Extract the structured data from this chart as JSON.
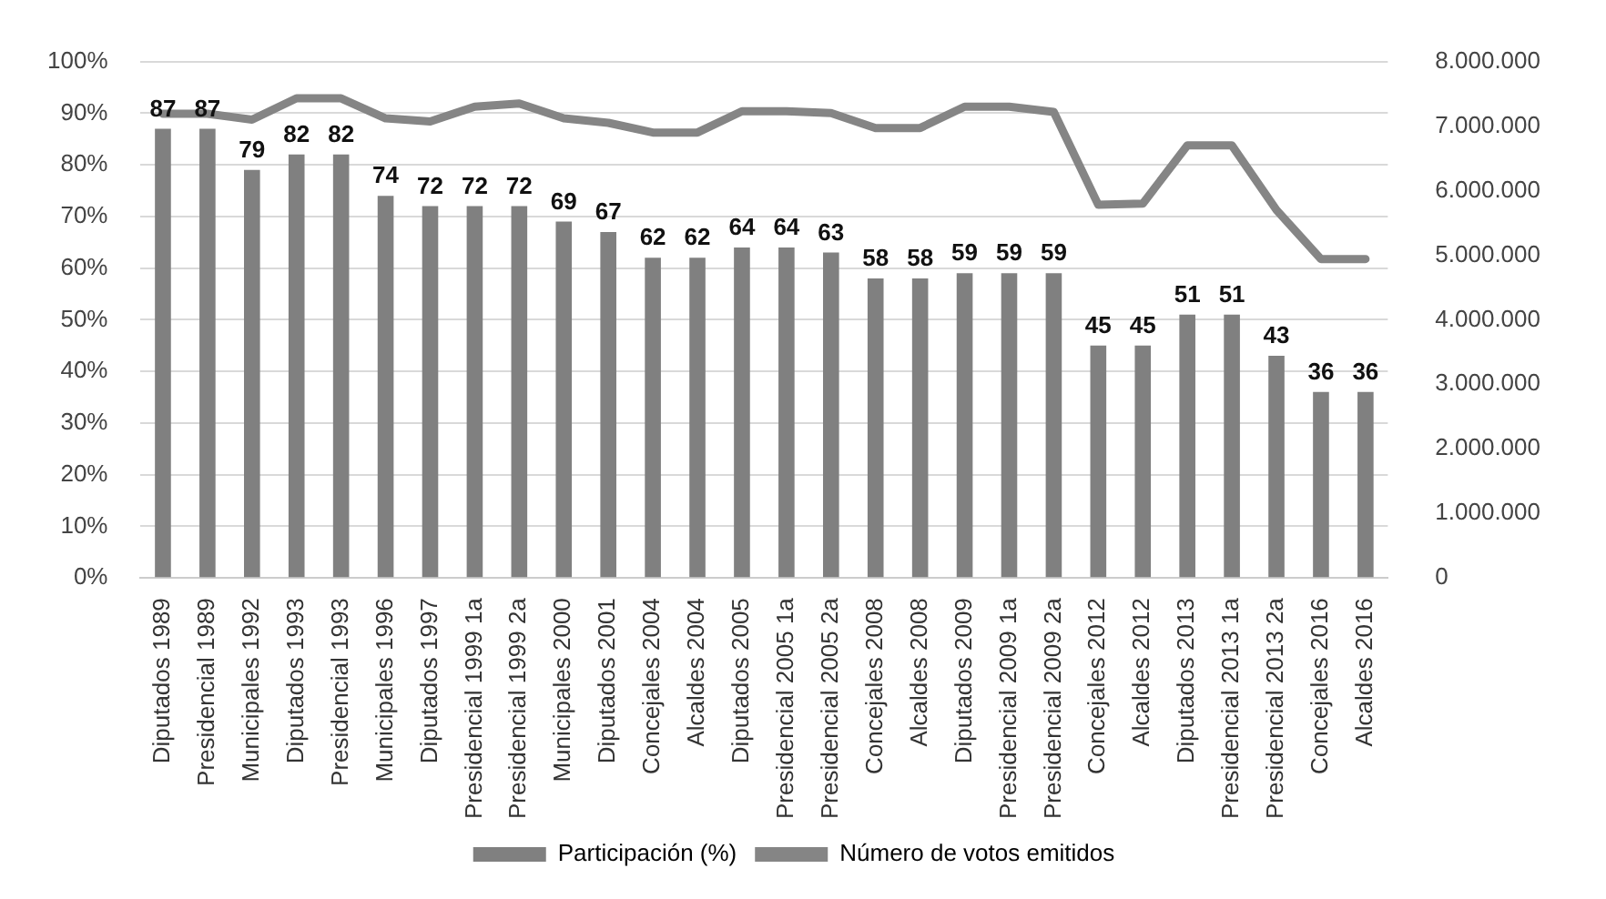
{
  "chart_data": {
    "type": "bar",
    "categories": [
      "Diputados 1989",
      "Presidencial 1989",
      "Municipales 1992",
      "Diputados 1993",
      "Presidencial 1993",
      "Municipales 1996",
      "Diputados 1997",
      "Presidencial 1999 1a",
      "Presidencial 1999 2a",
      "Municipales 2000",
      "Diputados 2001",
      "Concejales 2004",
      "Alcaldes 2004",
      "Diputados 2005",
      "Presidencial 2005 1a",
      "Presidencial 2005 2a",
      "Concejales 2008",
      "Alcaldes 2008",
      "Diputados 2009",
      "Presidencial 2009 1a",
      "Presidencial 2009 2a",
      "Concejales 2012",
      "Alcaldes 2012",
      "Diputados 2013",
      "Presidencial 2013 1a",
      "Presidencial 2013 2a",
      "Concejales 2016",
      "Alcaldes 2016"
    ],
    "series": [
      {
        "name": "Participación (%)",
        "color": "#808080",
        "values": [
          87,
          87,
          79,
          82,
          82,
          74,
          72,
          72,
          72,
          69,
          67,
          62,
          62,
          64,
          64,
          63,
          58,
          58,
          59,
          59,
          59,
          45,
          45,
          51,
          51,
          43,
          36,
          36
        ],
        "value_labels": [
          "87",
          "87",
          "79",
          "82",
          "82",
          "74",
          "72",
          "72",
          "72",
          "69",
          "67",
          "62",
          "62",
          "64",
          "64",
          "63",
          "58",
          "58",
          "59",
          "59",
          "59",
          "45",
          "45",
          "51",
          "51",
          "43",
          "36",
          "36"
        ]
      },
      {
        "name": "Número de votos emitidos",
        "type": "line",
        "axis": "y2",
        "color": "#858585",
        "values": [
          7190000,
          7190000,
          7100000,
          7430000,
          7430000,
          7120000,
          7070000,
          7300000,
          7350000,
          7120000,
          7050000,
          6900000,
          6900000,
          7230000,
          7230000,
          7200000,
          6970000,
          6970000,
          7300000,
          7300000,
          7220000,
          5780000,
          5800000,
          6700000,
          6700000,
          5700000,
          4940000,
          4940000
        ]
      }
    ],
    "ylim": [
      0,
      100
    ],
    "yticks": [
      {
        "value": 0,
        "label": "0%"
      },
      {
        "value": 10,
        "label": "10%"
      },
      {
        "value": 20,
        "label": "20%"
      },
      {
        "value": 30,
        "label": "30%"
      },
      {
        "value": 40,
        "label": "40%"
      },
      {
        "value": 50,
        "label": "50%"
      },
      {
        "value": 60,
        "label": "60%"
      },
      {
        "value": 70,
        "label": "70%"
      },
      {
        "value": 80,
        "label": "80%"
      },
      {
        "value": 90,
        "label": "90%"
      },
      {
        "value": 100,
        "label": "100%"
      }
    ],
    "y2lim": [
      0,
      8000000
    ],
    "y2ticks": [
      0,
      {
        "value": 1000000,
        "label": "1.000.000"
      },
      {
        "value": 2000000,
        "label": "2.000.000"
      },
      {
        "value": 3000000,
        "label": "3.000.000"
      },
      {
        "value": 4000000,
        "label": "4.000.000"
      },
      {
        "value": 5000000,
        "label": "5.000.000"
      },
      {
        "value": 6000000,
        "label": "6.000.000"
      },
      {
        "value": 7000000,
        "label": "7.000.000"
      },
      {
        "value": 8000000,
        "label": "8.000.000"
      }
    ],
    "grid": "y",
    "legend": "bottom",
    "marker": "none",
    "line_style": "solid"
  }
}
